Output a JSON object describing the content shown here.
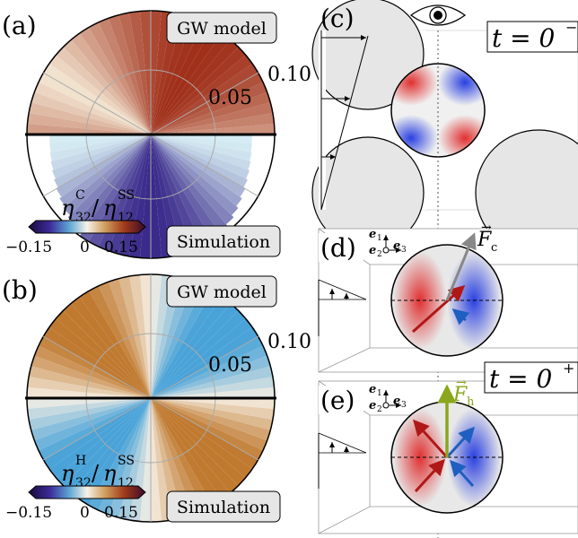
{
  "panels": {
    "a": "(a)",
    "b": "(b)",
    "c": "(c)",
    "d": "(d)",
    "e": "(e)"
  },
  "polar_a": {
    "top_label": "GW model",
    "bottom_label": "Simulation",
    "radial_ticks": [
      "0.10",
      "0.05"
    ],
    "colorbar_title_main": "η",
    "colorbar_title_sub": "32",
    "colorbar_title_sup": "C",
    "colorbar_denom_main": "η",
    "colorbar_denom_sub": "12",
    "colorbar_denom_sup": "SS",
    "colorbar_ticks": [
      "−0.15",
      "0",
      "0.15"
    ]
  },
  "polar_b": {
    "top_label": "GW model",
    "bottom_label": "Simulation",
    "radial_ticks": [
      "0.10",
      "0.05"
    ],
    "colorbar_title_main": "η",
    "colorbar_title_sub": "32",
    "colorbar_title_sup": "H",
    "colorbar_denom_main": "η",
    "colorbar_denom_sub": "12",
    "colorbar_denom_sup": "SS",
    "colorbar_ticks": [
      "−0.15",
      "0",
      "0.15"
    ]
  },
  "panel_c": {
    "time_label_main": "t = 0",
    "time_label_sup": "−"
  },
  "panel_d": {
    "force_main": "F",
    "force_sub": "c",
    "axis_e1": "e",
    "axis_e1_sub": "1",
    "axis_e2": "e",
    "axis_e2_sub": "2",
    "axis_e3": "e",
    "axis_e3_sub": "3"
  },
  "panel_e": {
    "force_main": "F",
    "force_sub": "h",
    "time_label_main": "t = 0",
    "time_label_sup": "+",
    "axis_e1": "e",
    "axis_e1_sub": "1",
    "axis_e2": "e",
    "axis_e2_sub": "2",
    "axis_e3": "e",
    "axis_e3_sub": "3"
  },
  "colors": {
    "warm": "#b5651d",
    "cool": "#4aa3d8",
    "dark_red": "#9a1b10",
    "force_c": "#888888",
    "force_h": "#8aa61c",
    "arrow_red": "#b01818",
    "arrow_blue": "#1f5fbf"
  }
}
